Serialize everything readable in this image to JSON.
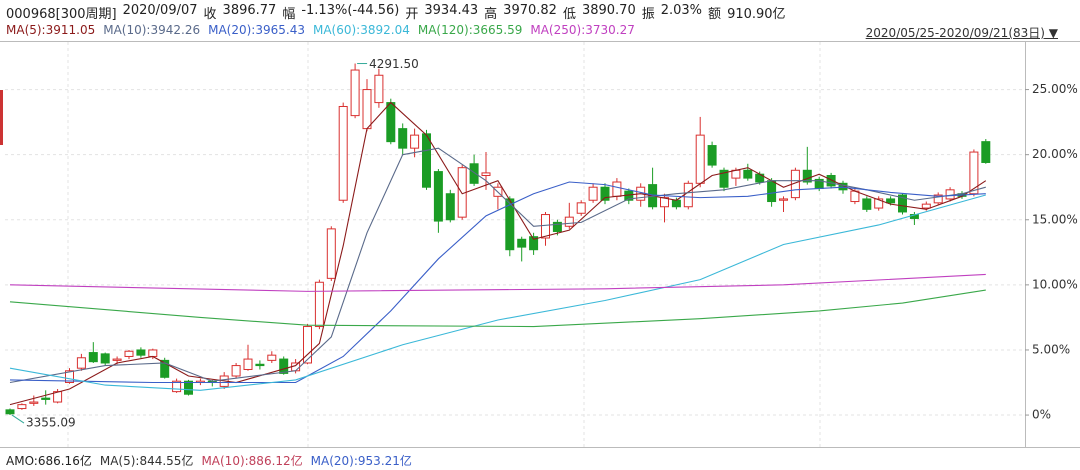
{
  "header": [
    "000968[300周期]",
    "2020/09/07",
    "收",
    "3896.77",
    "幅",
    "-1.13%(-44.56)",
    "开",
    "3934.43",
    "高",
    "3970.82",
    "低",
    "3890.70",
    "振",
    "2.03%",
    "额",
    "910.90亿"
  ],
  "range": "2020/05/25-2020/09/21(83日)",
  "volume_legend": [
    {
      "text": "AMO:686.16亿",
      "color": "#222222"
    },
    {
      "text": "MA(5):844.55亿",
      "color": "#333333"
    },
    {
      "text": "MA(10):886.12亿",
      "color": "#c0405a"
    },
    {
      "text": "MA(20):953.21亿",
      "color": "#3a5fc8"
    }
  ],
  "chart_data": {
    "type": "candlestick",
    "up_color": "#d9302f",
    "down_color": "#1b9c25",
    "annotations": {
      "max": "4291.50",
      "min": "3355.09"
    },
    "open": [
      0.4,
      0.5,
      0.9,
      1.3,
      1.0,
      2.5,
      3.6,
      4.8,
      4.7,
      4.2,
      4.5,
      5.0,
      4.5,
      4.2,
      1.8,
      2.6,
      2.5,
      2.6,
      2.2,
      3.0,
      3.5,
      3.9,
      4.2,
      4.3,
      3.4,
      4.0,
      6.8,
      10.5,
      16.5,
      23.0,
      22.0,
      24.0,
      24.0,
      22.0,
      20.5,
      21.6,
      18.7,
      17.0,
      15.2,
      19.3,
      18.4,
      16.8,
      16.6,
      13.5,
      13.7,
      13.6,
      14.8,
      14.5,
      15.5,
      16.5,
      17.5,
      16.8,
      17.2,
      16.5,
      17.7,
      16.0,
      16.5,
      16.0,
      17.8,
      20.7,
      18.8,
      18.2,
      18.8,
      18.5,
      18.0,
      16.5,
      16.7,
      18.8,
      18.1,
      18.4,
      17.8,
      16.4,
      16.6,
      15.9,
      16.6,
      16.9,
      15.4,
      15.9,
      16.3,
      16.6,
      17.0,
      17.0,
      21.0
    ],
    "high": [
      0.5,
      0.9,
      1.5,
      1.9,
      2.0,
      3.6,
      4.7,
      5.6,
      4.8,
      4.5,
      5.0,
      5.2,
      5.1,
      4.4,
      2.8,
      2.7,
      2.8,
      2.7,
      3.3,
      4.0,
      5.4,
      4.2,
      4.9,
      4.5,
      4.3,
      7.0,
      10.4,
      14.5,
      24.0,
      27.0,
      25.8,
      26.6,
      24.3,
      22.4,
      22.0,
      21.9,
      18.9,
      17.3,
      19.2,
      20.0,
      20.2,
      17.8,
      16.8,
      13.7,
      14.0,
      15.6,
      15.0,
      16.3,
      16.5,
      17.8,
      17.8,
      18.2,
      17.4,
      17.8,
      19.0,
      17.0,
      16.7,
      18.0,
      22.9,
      21.0,
      19.0,
      19.0,
      19.3,
      18.7,
      18.2,
      16.8,
      19.0,
      20.6,
      18.3,
      18.6,
      18.0,
      17.5,
      16.8,
      16.8,
      16.8,
      17.0,
      15.6,
      16.4,
      17.1,
      17.5,
      17.2,
      20.4,
      21.2
    ],
    "low": [
      0.0,
      0.4,
      0.7,
      0.8,
      0.9,
      2.4,
      3.4,
      4.0,
      3.8,
      3.9,
      4.3,
      4.4,
      4.3,
      2.8,
      1.7,
      1.5,
      2.3,
      2.2,
      2.0,
      2.8,
      3.4,
      3.5,
      4.0,
      3.1,
      3.2,
      3.9,
      6.6,
      10.3,
      16.3,
      22.8,
      21.8,
      23.6,
      20.8,
      20.0,
      19.8,
      17.3,
      14.0,
      14.8,
      15.0,
      17.6,
      17.3,
      15.8,
      12.2,
      11.8,
      12.3,
      13.0,
      13.8,
      14.3,
      15.3,
      16.3,
      16.2,
      16.5,
      16.2,
      16.0,
      15.8,
      14.8,
      15.8,
      15.8,
      17.5,
      19.0,
      17.2,
      17.6,
      18.0,
      17.7,
      16.0,
      15.6,
      16.5,
      17.7,
      17.2,
      17.4,
      17.0,
      16.2,
      15.6,
      15.7,
      16.1,
      15.4,
      14.6,
      15.7,
      16.1,
      16.4,
      16.6,
      16.8,
      19.3
    ],
    "close": [
      0.1,
      0.8,
      1.0,
      1.2,
      1.8,
      3.4,
      4.4,
      4.1,
      4.0,
      4.3,
      4.9,
      4.6,
      5.0,
      2.9,
      2.6,
      1.6,
      2.6,
      2.5,
      3.0,
      3.8,
      4.3,
      3.8,
      4.6,
      3.2,
      4.0,
      6.8,
      10.2,
      14.3,
      23.7,
      26.5,
      25.0,
      26.1,
      21.0,
      20.5,
      21.5,
      17.5,
      14.9,
      15.0,
      19.0,
      17.8,
      18.6,
      17.5,
      12.7,
      12.9,
      12.7,
      15.4,
      14.1,
      15.2,
      16.3,
      17.5,
      16.5,
      17.9,
      16.5,
      17.5,
      16.0,
      16.7,
      16.0,
      17.8,
      21.5,
      19.2,
      17.5,
      18.8,
      18.2,
      17.9,
      16.4,
      16.6,
      18.8,
      17.9,
      17.4,
      17.6,
      17.3,
      17.2,
      15.8,
      16.6,
      16.3,
      15.6,
      15.1,
      16.2,
      16.9,
      17.3,
      16.8,
      20.2,
      19.4
    ],
    "series": [
      {
        "name": "MA(5):3911.05",
        "color": "#8b1a1a",
        "x": [
          0,
          5,
          9,
          12,
          15,
          19,
          24,
          26,
          28,
          30,
          32,
          35,
          38,
          41,
          44,
          47,
          50,
          53,
          56,
          59,
          62,
          65,
          68,
          71,
          74,
          77,
          80,
          82
        ],
        "values": [
          0.8,
          2.0,
          4.0,
          4.5,
          3.0,
          2.5,
          3.8,
          5.5,
          13,
          22,
          24,
          21.5,
          17,
          18,
          13.5,
          14.2,
          16.7,
          17.0,
          16.5,
          18.4,
          19,
          17.5,
          18.5,
          17.2,
          16.2,
          15.8,
          16.8,
          18.0
        ]
      },
      {
        "name": "MA(10):3942.26",
        "color": "#5a6a8a",
        "x": [
          0,
          8,
          13,
          17,
          24,
          27,
          30,
          33,
          36,
          40,
          44,
          48,
          52,
          56,
          60,
          64,
          68,
          72,
          76,
          80,
          82
        ],
        "values": [
          2.5,
          3.8,
          4.0,
          2.6,
          3.4,
          6,
          14,
          20,
          20.5,
          18,
          14.5,
          14.8,
          16.6,
          17.0,
          17.3,
          18.0,
          18.0,
          17.3,
          16.5,
          17.0,
          17.5
        ]
      },
      {
        "name": "MA(20):3965.43",
        "color": "#3a5fc8",
        "x": [
          0,
          12,
          24,
          25,
          28,
          32,
          36,
          40,
          44,
          47,
          50,
          54,
          58,
          62,
          66,
          70,
          74,
          78,
          82
        ],
        "values": [
          2.7,
          2.5,
          2.5,
          3.0,
          4.5,
          8,
          12,
          15.3,
          17.0,
          17.9,
          17.7,
          16.9,
          16.7,
          16.8,
          17.3,
          17.5,
          17.1,
          16.8,
          17.0
        ]
      },
      {
        "name": "MA(60):3892.04",
        "color": "#3bb8d8",
        "x": [
          0,
          8,
          16,
          24,
          33,
          41,
          50,
          58,
          65,
          73,
          82
        ],
        "values": [
          3.6,
          2.3,
          1.9,
          2.7,
          5.4,
          7.3,
          8.8,
          10.4,
          13.1,
          14.6,
          16.9
        ]
      },
      {
        "name": "MA(120):3665.59",
        "color": "#3aa84a",
        "x": [
          0,
          16,
          25,
          44,
          58,
          68,
          75,
          82
        ],
        "values": [
          8.7,
          7.5,
          6.9,
          6.8,
          7.4,
          8.0,
          8.6,
          9.6
        ]
      },
      {
        "name": "MA(250):3730.27",
        "color": "#c040c0",
        "x": [
          0,
          25,
          50,
          65,
          82
        ],
        "values": [
          10.0,
          9.5,
          9.7,
          10.0,
          10.8
        ]
      }
    ],
    "ylim": [
      -2.3,
      28.5
    ],
    "yticks": [
      {
        "value": 0,
        "label": "0%"
      },
      {
        "value": 5,
        "label": "5.00%"
      },
      {
        "value": 10,
        "label": "10.00%"
      },
      {
        "value": 15,
        "label": "15.00%"
      },
      {
        "value": 20,
        "label": "20.00%"
      },
      {
        "value": 25,
        "label": "25.00%"
      }
    ],
    "grid": true
  }
}
